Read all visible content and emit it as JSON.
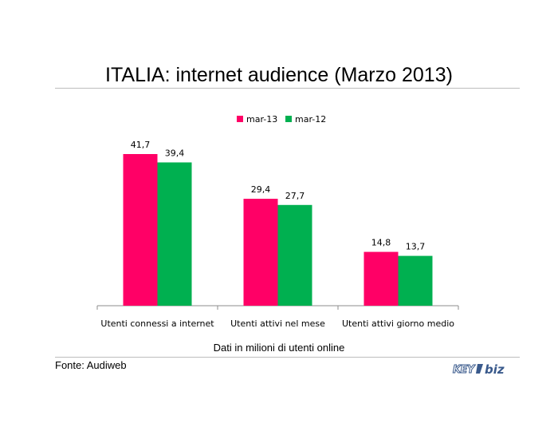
{
  "title": "ITALIA: internet audience (Marzo 2013)",
  "note": "Dati in milioni di utenti online",
  "source": "Fonte: Audiweb",
  "logo": "KEY4biz",
  "colors": {
    "mar13": "#ff0066",
    "mar12": "#00b050",
    "axis": "#8c8c8c",
    "rule": "#bdbdbd"
  },
  "chart_data": {
    "type": "bar",
    "categories": [
      "Utenti connessi a internet",
      "Utenti attivi nel mese",
      "Utenti attivi giorno medio"
    ],
    "series": [
      {
        "name": "mar-13",
        "values": [
          41.7,
          29.4,
          14.8
        ],
        "labels": [
          "41,7",
          "29,4",
          "14,8"
        ],
        "color": "#ff0066"
      },
      {
        "name": "mar-12",
        "values": [
          39.4,
          27.7,
          13.7
        ],
        "labels": [
          "39,4",
          "27,7",
          "13,7"
        ],
        "color": "#00b050"
      }
    ],
    "legend_position": "top-center",
    "y_axis_visible": false,
    "grid": false,
    "ylim": [
      0,
      45
    ]
  }
}
